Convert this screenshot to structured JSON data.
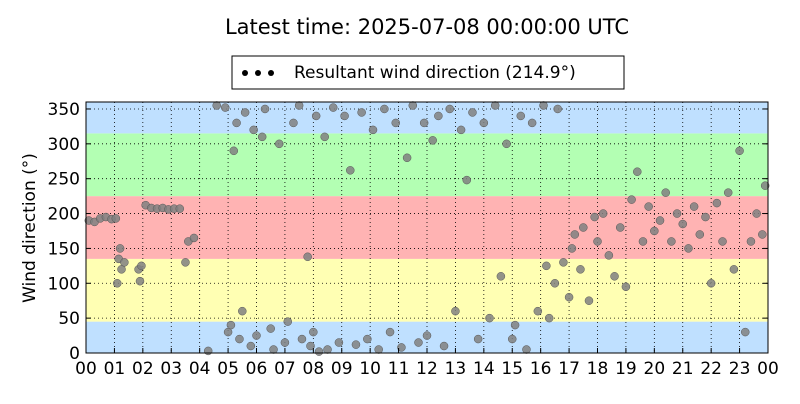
{
  "chart_data": {
    "type": "scatter",
    "title": "Latest time: 2025-07-08 00:00:00 UTC",
    "y_label": "Wind direction (°)",
    "xlim": [
      0,
      24
    ],
    "xticks": [
      {
        "value": 0,
        "label": "00"
      },
      {
        "value": 1,
        "label": "01"
      },
      {
        "value": 2,
        "label": "02"
      },
      {
        "value": 3,
        "label": "03"
      },
      {
        "value": 4,
        "label": "04"
      },
      {
        "value": 5,
        "label": "05"
      },
      {
        "value": 6,
        "label": "06"
      },
      {
        "value": 7,
        "label": "07"
      },
      {
        "value": 8,
        "label": "08"
      },
      {
        "value": 9,
        "label": "09"
      },
      {
        "value": 10,
        "label": "10"
      },
      {
        "value": 11,
        "label": "11"
      },
      {
        "value": 12,
        "label": "12"
      },
      {
        "value": 13,
        "label": "13"
      },
      {
        "value": 14,
        "label": "14"
      },
      {
        "value": 15,
        "label": "15"
      },
      {
        "value": 16,
        "label": "16"
      },
      {
        "value": 17,
        "label": "17"
      },
      {
        "value": 18,
        "label": "18"
      },
      {
        "value": 19,
        "label": "19"
      },
      {
        "value": 20,
        "label": "20"
      },
      {
        "value": 21,
        "label": "21"
      },
      {
        "value": 22,
        "label": "22"
      },
      {
        "value": 23,
        "label": "23"
      },
      {
        "value": 24,
        "label": "00"
      }
    ],
    "ylim": [
      0,
      360
    ],
    "yticks": [
      0,
      50,
      100,
      150,
      200,
      250,
      300,
      350
    ],
    "grid": true,
    "bands": [
      {
        "from": 0,
        "to": 45,
        "color": "#bfe0ff"
      },
      {
        "from": 45,
        "to": 135,
        "color": "#ffffb3"
      },
      {
        "from": 135,
        "to": 225,
        "color": "#ffb3b3"
      },
      {
        "from": 225,
        "to": 315,
        "color": "#b3ffb3"
      },
      {
        "from": 315,
        "to": 360,
        "color": "#bfe0ff"
      }
    ],
    "legend": "top",
    "series": [
      {
        "name": "Resultant wind direction (214.9°)",
        "color": "#808080",
        "x": [
          0.1,
          0.3,
          0.5,
          0.7,
          0.9,
          1.05,
          1.1,
          1.2,
          1.25,
          1.15,
          1.35,
          1.85,
          1.9,
          1.95,
          2.1,
          2.3,
          2.5,
          2.7,
          2.9,
          3.1,
          3.3,
          3.5,
          3.6,
          3.8,
          4.3,
          4.6,
          4.9,
          5.0,
          5.1,
          5.2,
          5.3,
          5.4,
          5.5,
          5.6,
          5.8,
          5.9,
          6.0,
          6.2,
          6.3,
          6.5,
          6.6,
          6.8,
          7.0,
          7.1,
          7.3,
          7.5,
          7.6,
          7.8,
          7.9,
          8.0,
          8.1,
          8.2,
          8.4,
          8.5,
          8.7,
          8.9,
          9.1,
          9.3,
          9.5,
          9.7,
          9.9,
          10.1,
          10.3,
          10.5,
          10.7,
          10.9,
          11.1,
          11.3,
          11.5,
          11.7,
          11.9,
          12.0,
          12.2,
          12.4,
          12.6,
          12.8,
          13.0,
          13.2,
          13.4,
          13.6,
          13.8,
          14.0,
          14.2,
          14.4,
          14.6,
          14.8,
          15.0,
          15.1,
          15.3,
          15.5,
          15.7,
          15.9,
          16.1,
          16.2,
          16.3,
          16.5,
          16.6,
          16.8,
          17.0,
          17.1,
          17.2,
          17.4,
          17.5,
          17.7,
          17.9,
          18.0,
          18.2,
          18.4,
          18.6,
          18.8,
          19.0,
          19.2,
          19.4,
          19.6,
          19.8,
          20.0,
          20.2,
          20.4,
          20.6,
          20.8,
          21.0,
          21.2,
          21.4,
          21.6,
          21.8,
          22.0,
          22.2,
          22.4,
          22.6,
          22.8,
          23.0,
          23.2,
          23.4,
          23.6,
          23.8,
          23.9
        ],
        "values": [
          190,
          188,
          193,
          195,
          192,
          193,
          100,
          150,
          120,
          135,
          130,
          120,
          103,
          125,
          212,
          208,
          207,
          208,
          206,
          207,
          207,
          130,
          160,
          165,
          3,
          355,
          352,
          30,
          40,
          290,
          330,
          20,
          60,
          345,
          10,
          320,
          25,
          310,
          350,
          35,
          5,
          300,
          15,
          45,
          330,
          355,
          20,
          138,
          10,
          30,
          340,
          2,
          310,
          5,
          352,
          15,
          340,
          262,
          12,
          345,
          20,
          320,
          5,
          350,
          30,
          330,
          8,
          280,
          355,
          15,
          330,
          25,
          305,
          340,
          10,
          350,
          60,
          320,
          248,
          345,
          20,
          330,
          50,
          355,
          110,
          300,
          20,
          40,
          340,
          5,
          330,
          60,
          355,
          125,
          50,
          100,
          350,
          130,
          80,
          150,
          170,
          120,
          180,
          75,
          195,
          160,
          200,
          140,
          110,
          180,
          95,
          220,
          260,
          160,
          210,
          175,
          190,
          230,
          160,
          200,
          185,
          150,
          210,
          170,
          195,
          100,
          215,
          160,
          230,
          120,
          290,
          30,
          160,
          200,
          170,
          240
        ]
      }
    ]
  }
}
